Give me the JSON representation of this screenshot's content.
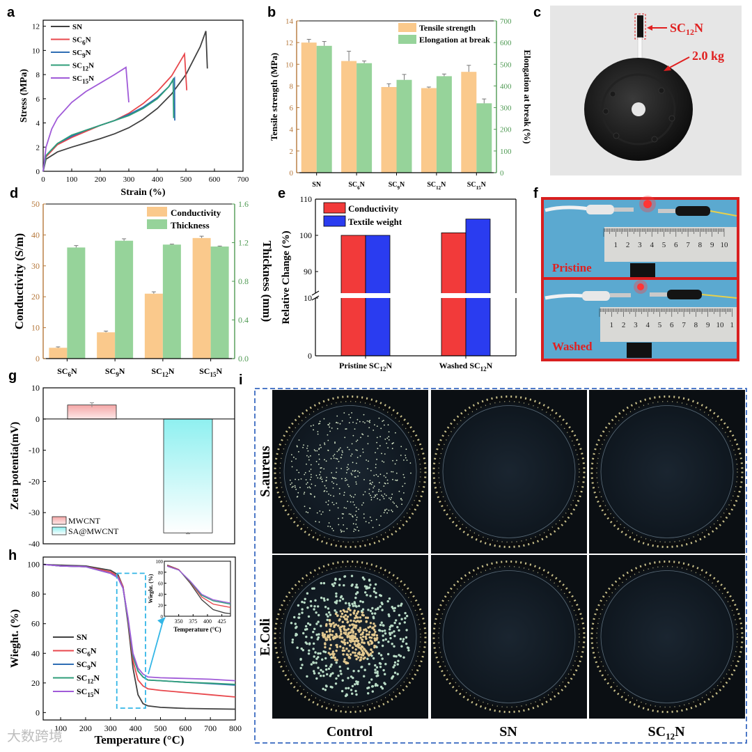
{
  "panel_letters": [
    "a",
    "b",
    "c",
    "d",
    "e",
    "f",
    "g",
    "h",
    "i"
  ],
  "watermark": "大数跨境",
  "colors": {
    "SN": "#404040",
    "SC6N": "#e8474c",
    "SC9N": "#2e6db4",
    "SC12N": "#2f9e7a",
    "SC15N": "#a05ad8",
    "tan": "#fac98c",
    "green": "#96d39a",
    "axis_green": "#4f9a53",
    "axis_tan": "#b5773a",
    "red": "#f23a3a",
    "blue": "#2a3cf0",
    "f_border": "#d91f1f",
    "i_border": "#4e79c7"
  },
  "chart_data": [
    {
      "id": "a",
      "type": "line",
      "xlabel": "Strain (%)",
      "ylabel": "Stress (MPa)",
      "xlim": [
        0,
        700
      ],
      "ylim": [
        0,
        12.5
      ],
      "xticks": [
        0,
        100,
        200,
        300,
        400,
        500,
        600,
        700
      ],
      "yticks": [
        0,
        2,
        4,
        6,
        8,
        10,
        12
      ],
      "series": [
        {
          "key": "SN",
          "sub": "",
          "name": "SN",
          "x": [
            0,
            10,
            50,
            100,
            150,
            200,
            250,
            300,
            350,
            400,
            450,
            500,
            550,
            570,
            575
          ],
          "y": [
            0,
            1.0,
            1.6,
            2.0,
            2.35,
            2.7,
            3.1,
            3.6,
            4.3,
            5.2,
            6.4,
            8.0,
            10.3,
            11.6,
            8.5
          ]
        },
        {
          "key": "SC6N",
          "sub": "6",
          "name": "SC6N",
          "x": [
            0,
            10,
            50,
            100,
            150,
            200,
            250,
            300,
            350,
            400,
            450,
            495,
            503
          ],
          "y": [
            0,
            1.2,
            2.2,
            2.8,
            3.3,
            3.8,
            4.2,
            4.8,
            5.6,
            6.6,
            7.9,
            9.7,
            6.7
          ]
        },
        {
          "key": "SC9N",
          "sub": "9",
          "name": "SC9N",
          "x": [
            0,
            10,
            50,
            100,
            150,
            200,
            250,
            300,
            350,
            400,
            440,
            460,
            461
          ],
          "y": [
            0,
            1.3,
            2.3,
            2.9,
            3.4,
            3.8,
            4.2,
            4.7,
            5.3,
            6.1,
            7.0,
            7.7,
            4.2
          ]
        },
        {
          "key": "SC12N",
          "sub": "12",
          "name": "SC12N",
          "x": [
            0,
            10,
            50,
            100,
            150,
            200,
            250,
            300,
            350,
            400,
            440,
            455,
            457
          ],
          "y": [
            0,
            1.3,
            2.3,
            3.0,
            3.4,
            3.8,
            4.2,
            4.6,
            5.2,
            6.0,
            7.0,
            7.6,
            4.4
          ]
        },
        {
          "key": "SC15N",
          "sub": "15",
          "name": "SC15N",
          "x": [
            0,
            10,
            30,
            50,
            100,
            150,
            200,
            250,
            290,
            300
          ],
          "y": [
            0,
            2.0,
            3.5,
            4.4,
            5.7,
            6.6,
            7.3,
            8.0,
            8.6,
            5.7
          ]
        }
      ]
    },
    {
      "id": "b",
      "type": "bar",
      "categories": [
        {
          "base": "SN",
          "sub": ""
        },
        {
          "base": "SC",
          "sub": "6",
          "end": "N"
        },
        {
          "base": "SC",
          "sub": "9",
          "end": "N"
        },
        {
          "base": "SC",
          "sub": "12",
          "end": "N"
        },
        {
          "base": "SC",
          "sub": "15",
          "end": "N"
        }
      ],
      "ylabel": "Tensile strength (MPa)",
      "y2label": "Elongation at break (%)",
      "ylim": [
        0,
        14
      ],
      "y2lim": [
        0,
        700
      ],
      "yticks": [
        0,
        2,
        4,
        6,
        8,
        10,
        12,
        14
      ],
      "y2ticks": [
        0,
        100,
        200,
        300,
        400,
        500,
        600,
        700
      ],
      "series": [
        {
          "name": "Tensile strength",
          "axis": "left",
          "values": [
            12.0,
            10.3,
            7.9,
            7.8,
            9.3
          ],
          "errors": [
            0.3,
            0.9,
            0.3,
            0.1,
            0.6
          ]
        },
        {
          "name": "Elongation at break",
          "axis": "right",
          "values": [
            585,
            505,
            428,
            445,
            320
          ],
          "errors": [
            20,
            10,
            25,
            10,
            20
          ]
        }
      ]
    },
    {
      "id": "d",
      "type": "bar",
      "categories": [
        {
          "base": "SC",
          "sub": "6",
          "end": "N"
        },
        {
          "base": "SC",
          "sub": "9",
          "end": "N"
        },
        {
          "base": "SC",
          "sub": "12",
          "end": "N"
        },
        {
          "base": "SC",
          "sub": "15",
          "end": "N"
        }
      ],
      "ylabel": "Conductivity (S/m)",
      "y2label": "Thickness (mm)",
      "ylim": [
        0,
        50
      ],
      "y2lim": [
        0,
        1.6
      ],
      "yticks": [
        0,
        10,
        20,
        30,
        40,
        50
      ],
      "y2ticks": [
        "0.0",
        "0.4",
        "0.8",
        "1.2",
        "1.6"
      ],
      "series": [
        {
          "name": "Conductivity",
          "axis": "left",
          "values": [
            3.5,
            8.5,
            21.0,
            39.0
          ],
          "errors": [
            0.3,
            0.4,
            0.6,
            0.6
          ]
        },
        {
          "name": "Thickness",
          "axis": "right",
          "values": [
            1.15,
            1.22,
            1.18,
            1.16
          ],
          "errors": [
            0.02,
            0.02,
            0.005,
            0.005
          ]
        }
      ]
    },
    {
      "id": "e",
      "type": "bar",
      "categories": [
        {
          "base": "Pristine SC",
          "sub": "12",
          "end": "N"
        },
        {
          "base": "Washed SC",
          "sub": "12",
          "end": "N"
        }
      ],
      "ylabel": "Relative Change (%)",
      "ylim": [
        0,
        110
      ],
      "axis_break": [
        10,
        85
      ],
      "yticks": [
        0,
        10,
        90,
        100,
        110
      ],
      "series": [
        {
          "name": "Conductivity",
          "values": [
            100,
            100.7
          ]
        },
        {
          "name": "Textile weight",
          "values": [
            100,
            104.5
          ]
        }
      ]
    },
    {
      "id": "g",
      "type": "bar",
      "ylabel": "Zeta potentia(mV)",
      "ylim": [
        -40,
        10
      ],
      "yticks": [
        -40,
        -30,
        -20,
        -10,
        0,
        10
      ],
      "series": [
        {
          "name": "MWCNT",
          "values": [
            4.5
          ],
          "errors": [
            0.7
          ]
        },
        {
          "name": "SA@MWCNT",
          "values": [
            -36.5
          ],
          "errors": [
            0.3
          ]
        }
      ]
    },
    {
      "id": "h",
      "type": "line",
      "xlabel": "Temperature (°C)",
      "ylabel": "Wieght. (%)",
      "xlim": [
        30,
        800
      ],
      "ylim": [
        -5,
        105
      ],
      "xticks": [
        100,
        200,
        300,
        400,
        500,
        600,
        700,
        800
      ],
      "yticks": [
        0,
        20,
        40,
        60,
        80,
        100
      ],
      "series": [
        {
          "key": "SN",
          "sub": "",
          "name": "SN",
          "x": [
            30,
            100,
            200,
            300,
            330,
            350,
            370,
            390,
            410,
            430,
            450,
            500,
            600,
            700,
            800
          ],
          "y": [
            100,
            99.5,
            99,
            96,
            93,
            85,
            60,
            30,
            12,
            6,
            4.5,
            3.5,
            2.8,
            2.5,
            2.3
          ]
        },
        {
          "key": "SC6N",
          "sub": "6",
          "name": "SC6N",
          "x": [
            30,
            100,
            200,
            300,
            330,
            350,
            370,
            390,
            410,
            430,
            450,
            500,
            600,
            700,
            800
          ],
          "y": [
            100,
            99,
            98.5,
            95,
            92,
            85,
            62,
            35,
            22,
            18,
            16,
            15,
            13.5,
            12,
            10.5
          ]
        },
        {
          "key": "SC9N",
          "sub": "9",
          "name": "SC9N",
          "x": [
            30,
            100,
            200,
            300,
            330,
            350,
            370,
            390,
            410,
            430,
            450,
            500,
            600,
            700,
            800
          ],
          "y": [
            100,
            99,
            98.5,
            94,
            91,
            84,
            63,
            38,
            28,
            24,
            22,
            21.5,
            20.5,
            19.5,
            18.5
          ]
        },
        {
          "key": "SC12N",
          "sub": "12",
          "name": "SC12N",
          "x": [
            30,
            100,
            200,
            300,
            330,
            350,
            370,
            390,
            410,
            430,
            450,
            500,
            600,
            700,
            800
          ],
          "y": [
            100,
            99,
            98.5,
            94,
            91,
            84,
            63,
            38,
            28,
            24,
            22,
            21.5,
            20.5,
            19.8,
            19
          ]
        },
        {
          "key": "SC15N",
          "sub": "15",
          "name": "SC15N",
          "x": [
            30,
            100,
            200,
            300,
            330,
            350,
            370,
            390,
            410,
            430,
            450,
            500,
            600,
            700,
            800
          ],
          "y": [
            100,
            99,
            98.5,
            94,
            91,
            84,
            64,
            40,
            30,
            26,
            24,
            23.5,
            23,
            22.5,
            21.5
          ]
        }
      ],
      "inset": {
        "xlabel": "Temperature (°C)",
        "ylabel": "Wieght. (%)",
        "xlim": [
          325,
          440
        ],
        "ylim": [
          0,
          100
        ],
        "xticks": [
          350,
          375,
          400,
          425
        ],
        "yticks": [
          0,
          20,
          40,
          60,
          80,
          100
        ]
      }
    }
  ],
  "panel_c": {
    "label_base": "SC",
    "label_sub": "12",
    "label_end": "N",
    "weight": "2.0 kg"
  },
  "panel_f": {
    "top": "Pristine",
    "bottom": "Washed",
    "ruler_top": [
      "1",
      "2",
      "3",
      "4",
      "5",
      "6",
      "7",
      "8",
      "9",
      "10"
    ],
    "ruler_bottom": [
      "1",
      "2",
      "3",
      "4",
      "5",
      "6",
      "7",
      "8",
      "9",
      "10",
      "1"
    ]
  },
  "panel_i": {
    "rows": [
      "S.aureus",
      "E.Coli"
    ],
    "columns": [
      {
        "base": "Control",
        "sub": "",
        "end": ""
      },
      {
        "base": "SN",
        "sub": "",
        "end": ""
      },
      {
        "base": "SC",
        "sub": "12",
        "end": "N"
      }
    ]
  }
}
